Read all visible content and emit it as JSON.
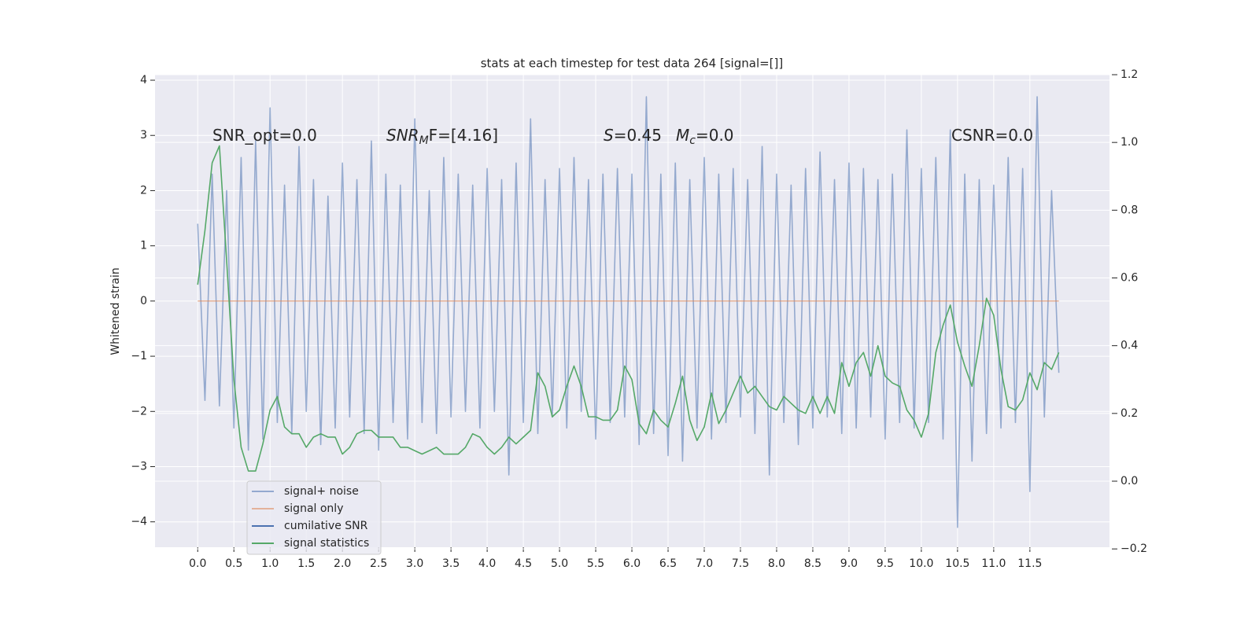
{
  "chart_data": {
    "type": "line",
    "title": "stats at each timestep for test data 264 [signal=[]]",
    "y_label": "Whitened strain",
    "annotations": [
      [
        "SNR_opt=0.0"
      ],
      [
        "SNR",
        "M",
        "F=[4.16]"
      ],
      [
        "S",
        "=0.45"
      ],
      [
        "M",
        "c",
        "=0.0"
      ],
      [
        "CSNR=0.0"
      ]
    ],
    "grid": true,
    "legend": "lower left",
    "background": "#eaeaf2",
    "xlim": [
      -0.59,
      12.6
    ],
    "ylim": [
      -4.46,
      4.1
    ],
    "y2lim": [
      -0.195,
      1.2
    ],
    "xticks": [
      {
        "value": 0,
        "label": "0.0"
      },
      {
        "value": 0.5,
        "label": "0.5"
      },
      {
        "value": 1,
        "label": "1.0"
      },
      {
        "value": 1.5,
        "label": "1.5"
      },
      {
        "value": 2,
        "label": "2.0"
      },
      {
        "value": 2.5,
        "label": "2.5"
      },
      {
        "value": 3,
        "label": "3.0"
      },
      {
        "value": 3.5,
        "label": "3.5"
      },
      {
        "value": 4,
        "label": "4.0"
      },
      {
        "value": 4.5,
        "label": "4.5"
      },
      {
        "value": 5,
        "label": "5.0"
      },
      {
        "value": 5.5,
        "label": "5.5"
      },
      {
        "value": 6,
        "label": "6.0"
      },
      {
        "value": 6.5,
        "label": "6.5"
      },
      {
        "value": 7,
        "label": "7.0"
      },
      {
        "value": 7.5,
        "label": "7.5"
      },
      {
        "value": 8,
        "label": "8.0"
      },
      {
        "value": 8.5,
        "label": "8.5"
      },
      {
        "value": 9,
        "label": "9.0"
      },
      {
        "value": 9.5,
        "label": "9.5"
      },
      {
        "value": 10,
        "label": "10.0"
      },
      {
        "value": 10.5,
        "label": "10.5"
      },
      {
        "value": 11,
        "label": "11.0"
      },
      {
        "value": 11.5,
        "label": "11.5"
      }
    ],
    "yticks": [
      {
        "value": -4,
        "label": "−4"
      },
      {
        "value": -3,
        "label": "−3"
      },
      {
        "value": -2,
        "label": "−2"
      },
      {
        "value": -1,
        "label": "−1"
      },
      0,
      1,
      2,
      3,
      4
    ],
    "y2ticks": [
      {
        "value": -0.2,
        "label": "−0.2"
      },
      {
        "value": 0,
        "label": "0.0"
      },
      0.2,
      0.4,
      0.6,
      0.8,
      {
        "value": 1,
        "label": "1.0"
      },
      1.2
    ],
    "x": [
      0,
      0.1,
      0.2,
      0.3,
      0.4,
      0.5,
      0.6,
      0.7,
      0.8,
      0.9,
      1,
      1.1,
      1.2,
      1.3,
      1.4,
      1.5,
      1.6,
      1.7,
      1.8,
      1.9,
      2,
      2.1,
      2.2,
      2.3,
      2.4,
      2.5,
      2.6,
      2.7,
      2.8,
      2.9,
      3,
      3.1,
      3.2,
      3.3,
      3.4,
      3.5,
      3.6,
      3.7,
      3.8,
      3.9,
      4,
      4.1,
      4.2,
      4.3,
      4.4,
      4.5,
      4.6,
      4.7,
      4.8,
      4.9,
      5,
      5.1,
      5.2,
      5.3,
      5.4,
      5.5,
      5.6,
      5.7,
      5.8,
      5.9,
      6,
      6.1,
      6.2,
      6.3,
      6.4,
      6.5,
      6.6,
      6.7,
      6.8,
      6.9,
      7,
      7.1,
      7.2,
      7.3,
      7.4,
      7.5,
      7.6,
      7.7,
      7.8,
      7.9,
      8,
      8.1,
      8.2,
      8.3,
      8.4,
      8.5,
      8.6,
      8.7,
      8.8,
      8.9,
      9,
      9.1,
      9.2,
      9.3,
      9.4,
      9.5,
      9.6,
      9.7,
      9.8,
      9.9,
      10,
      10.1,
      10.2,
      10.3,
      10.4,
      10.5,
      10.6,
      10.7,
      10.8,
      10.9,
      11,
      11.1,
      11.2,
      11.3,
      11.4,
      11.5,
      11.6,
      11.7,
      11.8,
      11.9
    ],
    "series": [
      {
        "name": "signal+ noise",
        "color": "#4c72b0",
        "alpha": 0.55,
        "values": [
          1.4,
          -1.8,
          2.3,
          -1.9,
          2.0,
          -2.3,
          2.6,
          -2.7,
          2.9,
          -2.5,
          3.5,
          -2.2,
          2.1,
          -2.4,
          2.8,
          -2.0,
          2.2,
          -2.6,
          1.9,
          -2.3,
          2.5,
          -2.1,
          2.2,
          -2.4,
          2.9,
          -2.7,
          2.3,
          -2.2,
          2.1,
          -2.5,
          3.3,
          -2.2,
          2.0,
          -2.4,
          2.6,
          -2.1,
          2.3,
          -2.0,
          2.1,
          -2.3,
          2.4,
          -2.0,
          2.2,
          -3.15,
          2.5,
          -2.2,
          3.3,
          -2.4,
          2.2,
          -2.1,
          2.4,
          -2.3,
          2.6,
          -2.0,
          2.2,
          -2.5,
          2.3,
          -2.2,
          2.4,
          -2.1,
          2.3,
          -2.6,
          3.7,
          -2.4,
          2.3,
          -2.8,
          2.5,
          -2.9,
          2.2,
          -2.3,
          2.6,
          -2.5,
          2.3,
          -2.2,
          2.4,
          -2.1,
          2.2,
          -2.4,
          2.8,
          -3.15,
          2.3,
          -2.2,
          2.1,
          -2.6,
          2.4,
          -2.3,
          2.7,
          -2.1,
          2.2,
          -2.4,
          2.5,
          -2.3,
          2.4,
          -2.1,
          2.2,
          -2.5,
          2.3,
          -2.2,
          3.1,
          -2.3,
          2.4,
          -2.2,
          2.6,
          -2.5,
          3.1,
          -4.1,
          2.3,
          -2.9,
          2.2,
          -2.4,
          2.1,
          -2.3,
          2.6,
          -2.2,
          2.4,
          -3.45,
          3.7,
          -2.1,
          2.0,
          -1.3
        ]
      },
      {
        "name": "signal only",
        "color": "#dd8452",
        "alpha": 0.55,
        "values": [
          0,
          0,
          0,
          0,
          0,
          0,
          0,
          0,
          0,
          0,
          0,
          0,
          0,
          0,
          0,
          0,
          0,
          0,
          0,
          0,
          0,
          0,
          0,
          0,
          0,
          0,
          0,
          0,
          0,
          0,
          0,
          0,
          0,
          0,
          0,
          0,
          0,
          0,
          0,
          0,
          0,
          0,
          0,
          0,
          0,
          0,
          0,
          0,
          0,
          0,
          0,
          0,
          0,
          0,
          0,
          0,
          0,
          0,
          0,
          0,
          0,
          0,
          0,
          0,
          0,
          0,
          0,
          0,
          0,
          0,
          0,
          0,
          0,
          0,
          0,
          0,
          0,
          0,
          0,
          0,
          0,
          0,
          0,
          0,
          0,
          0,
          0,
          0,
          0,
          0,
          0,
          0,
          0,
          0,
          0,
          0,
          0,
          0,
          0,
          0,
          0,
          0,
          0,
          0,
          0,
          0,
          0,
          0,
          0,
          0,
          0,
          0,
          0,
          0,
          0,
          0,
          0,
          0,
          0,
          0
        ]
      },
      {
        "name": "cumilative SNR",
        "color": "#4c72b0",
        "alpha": 1,
        "values": [
          null,
          null,
          null,
          null,
          null,
          null,
          null,
          null,
          null,
          null,
          null,
          null,
          null,
          null,
          null,
          null,
          null,
          null,
          null,
          null,
          null,
          null,
          null,
          null,
          null,
          null,
          null,
          null,
          null,
          null,
          null,
          null,
          null,
          null,
          null,
          null,
          null,
          null,
          null,
          null,
          null,
          null,
          null,
          null,
          null,
          null,
          null,
          null,
          null,
          null,
          null,
          null,
          null,
          null,
          null,
          null,
          null,
          null,
          null,
          null,
          null,
          null,
          null,
          null,
          null,
          null,
          null,
          null,
          null,
          null,
          null,
          null,
          null,
          null,
          null,
          null,
          null,
          null,
          null,
          null,
          null,
          null,
          null,
          null,
          null,
          null,
          null,
          null,
          null,
          null,
          null,
          null,
          null,
          null,
          null,
          null,
          null,
          null,
          null,
          null,
          null,
          null,
          null,
          null,
          null,
          null,
          null,
          null,
          null,
          null,
          null,
          null,
          null,
          null,
          null,
          null,
          null,
          null,
          null,
          null
        ]
      },
      {
        "name": "signal statistics",
        "color": "#55a868",
        "alpha": 1,
        "axis": "y2",
        "values": [
          0.58,
          0.74,
          0.94,
          0.99,
          0.65,
          0.3,
          0.1,
          0.03,
          0.03,
          0.11,
          0.21,
          0.25,
          0.16,
          0.14,
          0.14,
          0.1,
          0.13,
          0.14,
          0.13,
          0.13,
          0.08,
          0.1,
          0.14,
          0.15,
          0.15,
          0.13,
          0.13,
          0.13,
          0.1,
          0.1,
          0.09,
          0.08,
          0.09,
          0.1,
          0.08,
          0.08,
          0.08,
          0.1,
          0.14,
          0.13,
          0.1,
          0.08,
          0.1,
          0.13,
          0.11,
          0.13,
          0.15,
          0.32,
          0.28,
          0.19,
          0.21,
          0.28,
          0.34,
          0.28,
          0.19,
          0.19,
          0.18,
          0.18,
          0.21,
          0.34,
          0.3,
          0.17,
          0.14,
          0.21,
          0.18,
          0.16,
          0.23,
          0.31,
          0.18,
          0.12,
          0.16,
          0.26,
          0.17,
          0.21,
          0.26,
          0.31,
          0.26,
          0.28,
          0.25,
          0.22,
          0.21,
          0.25,
          0.23,
          0.21,
          0.2,
          0.25,
          0.2,
          0.25,
          0.2,
          0.35,
          0.28,
          0.35,
          0.38,
          0.31,
          0.4,
          0.31,
          0.29,
          0.28,
          0.21,
          0.18,
          0.13,
          0.2,
          0.38,
          0.46,
          0.52,
          0.41,
          0.34,
          0.28,
          0.4,
          0.54,
          0.49,
          0.33,
          0.22,
          0.21,
          0.24,
          0.32,
          0.27,
          0.35,
          0.33,
          0.38
        ]
      }
    ]
  }
}
